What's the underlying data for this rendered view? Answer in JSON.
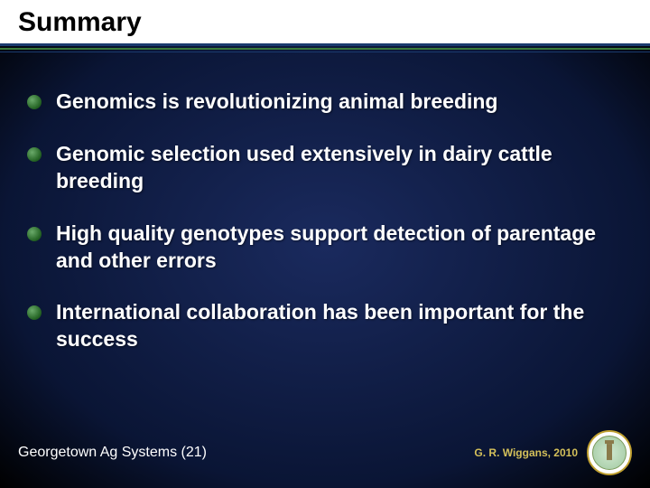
{
  "title": "Summary",
  "bullets": [
    "Genomics is revolutionizing animal breeding",
    "Genomic selection used extensively in dairy cattle breeding",
    "High quality genotypes support detection of parentage and other errors",
    "International collaboration has been important for the success"
  ],
  "footer_left": "Georgetown Ag Systems (21)",
  "footer_author": "G. R. Wiggans, 2010",
  "colors": {
    "bg_center": "#1a2a5e",
    "bg_outer": "#000000",
    "title_bg": "#ffffff",
    "title_text": "#000000",
    "divider_blue": "#1a3a6e",
    "divider_green": "#3a7a3a",
    "bullet_green_light": "#6aaa6a",
    "bullet_green_dark": "#0a3a0a",
    "body_text": "#ffffff",
    "author_text": "#d4c05a"
  },
  "fonts": {
    "title_size": 30,
    "bullet_size": 23,
    "footer_left_size": 16,
    "author_size": 12
  }
}
